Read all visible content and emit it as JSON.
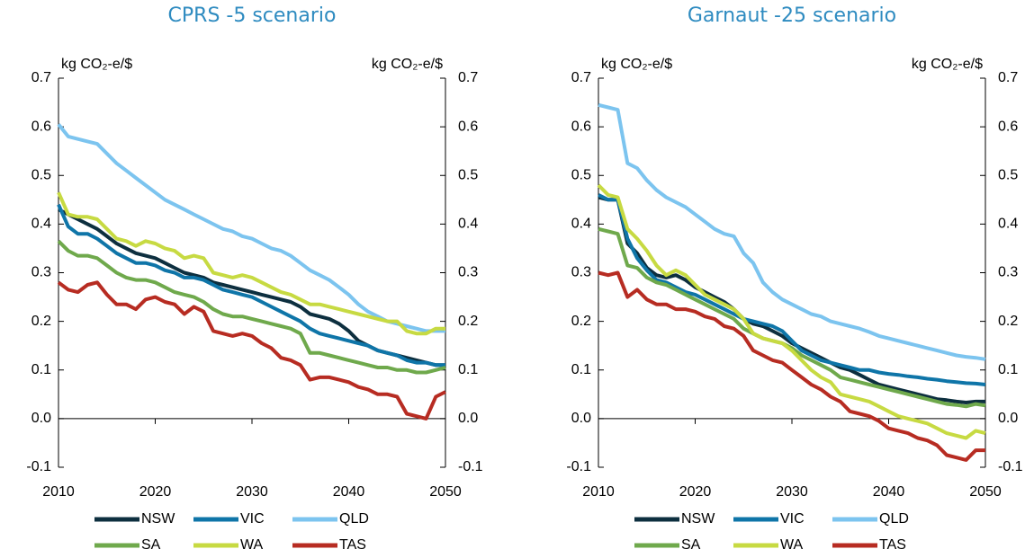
{
  "chart_data": [
    {
      "type": "line",
      "title": "CPRS -5 scenario",
      "y_label": "kg CO₂-e/$",
      "y2_label": "kg CO₂-e/$",
      "x": [
        2010,
        2011,
        2012,
        2013,
        2014,
        2015,
        2016,
        2017,
        2018,
        2019,
        2020,
        2021,
        2022,
        2023,
        2024,
        2025,
        2026,
        2027,
        2028,
        2029,
        2030,
        2031,
        2032,
        2033,
        2034,
        2035,
        2036,
        2037,
        2038,
        2039,
        2040,
        2041,
        2042,
        2043,
        2044,
        2045,
        2046,
        2047,
        2048,
        2049,
        2050
      ],
      "xlim": [
        2010,
        2050
      ],
      "xticks": [
        2010,
        2020,
        2030,
        2040,
        2050
      ],
      "ylim": [
        -0.1,
        0.7
      ],
      "yticks": [
        0.7,
        0.6,
        0.5,
        0.4,
        0.3,
        0.2,
        0.1,
        {
          "value": 0,
          "label": "0.0"
        },
        -0.1
      ],
      "y2lim": [
        -0.1,
        0.7
      ],
      "y2ticks": [
        0.7,
        0.6,
        0.5,
        0.4,
        0.3,
        0.2,
        0.1,
        {
          "value": 0,
          "label": "0.0"
        },
        -0.1
      ],
      "series": [
        {
          "name": "NSW",
          "color": "#0d2f3f",
          "values": [
            0.43,
            0.42,
            0.41,
            0.4,
            0.39,
            0.375,
            0.36,
            0.35,
            0.34,
            0.335,
            0.33,
            0.32,
            0.31,
            0.3,
            0.295,
            0.29,
            0.28,
            0.275,
            0.27,
            0.265,
            0.26,
            0.255,
            0.25,
            0.245,
            0.24,
            0.23,
            0.215,
            0.21,
            0.205,
            0.195,
            0.18,
            0.16,
            0.15,
            0.14,
            0.135,
            0.13,
            0.125,
            0.12,
            0.115,
            0.11,
            0.11
          ]
        },
        {
          "name": "VIC",
          "color": "#0f75a8",
          "values": [
            0.44,
            0.395,
            0.38,
            0.38,
            0.37,
            0.355,
            0.34,
            0.33,
            0.32,
            0.32,
            0.315,
            0.305,
            0.3,
            0.29,
            0.29,
            0.285,
            0.275,
            0.265,
            0.26,
            0.255,
            0.25,
            0.24,
            0.23,
            0.22,
            0.21,
            0.2,
            0.185,
            0.175,
            0.17,
            0.165,
            0.16,
            0.155,
            0.15,
            0.14,
            0.135,
            0.13,
            0.12,
            0.115,
            0.115,
            0.11,
            0.11
          ]
        },
        {
          "name": "QLD",
          "color": "#7cc4ef",
          "values": [
            0.605,
            0.58,
            0.575,
            0.57,
            0.565,
            0.545,
            0.525,
            0.51,
            0.495,
            0.48,
            0.465,
            0.45,
            0.44,
            0.43,
            0.42,
            0.41,
            0.4,
            0.39,
            0.385,
            0.375,
            0.37,
            0.36,
            0.35,
            0.345,
            0.335,
            0.32,
            0.305,
            0.295,
            0.285,
            0.27,
            0.255,
            0.235,
            0.22,
            0.21,
            0.2,
            0.195,
            0.19,
            0.185,
            0.18,
            0.18,
            0.18
          ]
        },
        {
          "name": "SA",
          "color": "#6fa94c",
          "values": [
            0.365,
            0.345,
            0.335,
            0.335,
            0.33,
            0.315,
            0.3,
            0.29,
            0.285,
            0.285,
            0.28,
            0.27,
            0.26,
            0.255,
            0.25,
            0.24,
            0.225,
            0.215,
            0.21,
            0.21,
            0.205,
            0.2,
            0.195,
            0.19,
            0.185,
            0.175,
            0.135,
            0.135,
            0.13,
            0.125,
            0.12,
            0.115,
            0.11,
            0.105,
            0.105,
            0.1,
            0.1,
            0.095,
            0.095,
            0.1,
            0.105
          ]
        },
        {
          "name": "WA",
          "color": "#c7da42",
          "values": [
            0.465,
            0.42,
            0.415,
            0.415,
            0.41,
            0.39,
            0.37,
            0.365,
            0.355,
            0.365,
            0.36,
            0.35,
            0.345,
            0.33,
            0.335,
            0.33,
            0.3,
            0.295,
            0.29,
            0.295,
            0.29,
            0.28,
            0.27,
            0.26,
            0.255,
            0.245,
            0.235,
            0.235,
            0.23,
            0.225,
            0.22,
            0.215,
            0.21,
            0.205,
            0.2,
            0.2,
            0.18,
            0.175,
            0.175,
            0.185,
            0.185
          ]
        },
        {
          "name": "TAS",
          "color": "#b72c22",
          "values": [
            0.28,
            0.265,
            0.26,
            0.275,
            0.28,
            0.255,
            0.235,
            0.235,
            0.225,
            0.245,
            0.25,
            0.24,
            0.235,
            0.215,
            0.23,
            0.22,
            0.18,
            0.175,
            0.17,
            0.175,
            0.17,
            0.155,
            0.145,
            0.125,
            0.12,
            0.11,
            0.08,
            0.085,
            0.085,
            0.08,
            0.075,
            0.065,
            0.06,
            0.05,
            0.05,
            0.045,
            0.01,
            0.005,
            0.0,
            0.045,
            0.055
          ]
        }
      ]
    },
    {
      "type": "line",
      "title": "Garnaut -25 scenario",
      "y_label": "kg CO₂-e/$",
      "y2_label": "kg CO₂-e/$",
      "x": [
        2010,
        2011,
        2012,
        2013,
        2014,
        2015,
        2016,
        2017,
        2018,
        2019,
        2020,
        2021,
        2022,
        2023,
        2024,
        2025,
        2026,
        2027,
        2028,
        2029,
        2030,
        2031,
        2032,
        2033,
        2034,
        2035,
        2036,
        2037,
        2038,
        2039,
        2040,
        2041,
        2042,
        2043,
        2044,
        2045,
        2046,
        2047,
        2048,
        2049,
        2050
      ],
      "xlim": [
        2010,
        2050
      ],
      "xticks": [
        2010,
        2020,
        2030,
        2040,
        2050
      ],
      "ylim": [
        -0.1,
        0.7
      ],
      "yticks": [
        0.7,
        0.6,
        0.5,
        0.4,
        0.3,
        0.2,
        0.1,
        {
          "value": 0,
          "label": "0.0"
        },
        -0.1
      ],
      "y2lim": [
        -0.1,
        0.7
      ],
      "y2ticks": [
        0.7,
        0.6,
        0.5,
        0.4,
        0.3,
        0.2,
        0.1,
        {
          "value": 0,
          "label": "0.0"
        },
        -0.1
      ],
      "series": [
        {
          "name": "NSW",
          "color": "#0d2f3f",
          "values": [
            0.455,
            0.45,
            0.45,
            0.36,
            0.34,
            0.31,
            0.295,
            0.29,
            0.295,
            0.285,
            0.27,
            0.26,
            0.25,
            0.24,
            0.225,
            0.205,
            0.195,
            0.19,
            0.18,
            0.17,
            0.155,
            0.145,
            0.135,
            0.125,
            0.115,
            0.105,
            0.1,
            0.09,
            0.08,
            0.07,
            0.065,
            0.06,
            0.055,
            0.05,
            0.045,
            0.04,
            0.038,
            0.035,
            0.033,
            0.035,
            0.035
          ]
        },
        {
          "name": "VIC",
          "color": "#0f75a8",
          "values": [
            0.46,
            0.45,
            0.45,
            0.37,
            0.33,
            0.305,
            0.285,
            0.28,
            0.27,
            0.26,
            0.255,
            0.245,
            0.235,
            0.225,
            0.215,
            0.205,
            0.2,
            0.195,
            0.19,
            0.18,
            0.16,
            0.14,
            0.13,
            0.12,
            0.115,
            0.11,
            0.105,
            0.1,
            0.1,
            0.095,
            0.092,
            0.09,
            0.087,
            0.085,
            0.082,
            0.08,
            0.077,
            0.075,
            0.073,
            0.072,
            0.07
          ]
        },
        {
          "name": "QLD",
          "color": "#7cc4ef",
          "values": [
            0.645,
            0.64,
            0.635,
            0.525,
            0.515,
            0.49,
            0.47,
            0.455,
            0.445,
            0.435,
            0.42,
            0.405,
            0.39,
            0.38,
            0.375,
            0.34,
            0.32,
            0.28,
            0.26,
            0.245,
            0.235,
            0.225,
            0.215,
            0.21,
            0.2,
            0.195,
            0.19,
            0.185,
            0.178,
            0.17,
            0.165,
            0.16,
            0.155,
            0.15,
            0.145,
            0.14,
            0.135,
            0.13,
            0.127,
            0.125,
            0.122
          ]
        },
        {
          "name": "SA",
          "color": "#6fa94c",
          "values": [
            0.39,
            0.385,
            0.38,
            0.315,
            0.31,
            0.29,
            0.28,
            0.275,
            0.265,
            0.255,
            0.245,
            0.235,
            0.225,
            0.215,
            0.205,
            0.185,
            0.175,
            0.165,
            0.16,
            0.155,
            0.145,
            0.13,
            0.12,
            0.11,
            0.1,
            0.085,
            0.08,
            0.075,
            0.07,
            0.065,
            0.06,
            0.055,
            0.05,
            0.045,
            0.04,
            0.035,
            0.03,
            0.028,
            0.025,
            0.03,
            0.027
          ]
        },
        {
          "name": "WA",
          "color": "#c7da42",
          "values": [
            0.48,
            0.46,
            0.455,
            0.39,
            0.37,
            0.345,
            0.315,
            0.295,
            0.305,
            0.295,
            0.275,
            0.255,
            0.245,
            0.235,
            0.225,
            0.205,
            0.175,
            0.165,
            0.16,
            0.155,
            0.14,
            0.12,
            0.1,
            0.085,
            0.075,
            0.05,
            0.045,
            0.04,
            0.035,
            0.025,
            0.015,
            0.005,
            0.0,
            -0.005,
            -0.01,
            -0.02,
            -0.03,
            -0.035,
            -0.04,
            -0.025,
            -0.03
          ]
        },
        {
          "name": "TAS",
          "color": "#b72c22",
          "values": [
            0.3,
            0.295,
            0.3,
            0.25,
            0.265,
            0.245,
            0.235,
            0.235,
            0.225,
            0.225,
            0.22,
            0.21,
            0.205,
            0.19,
            0.185,
            0.17,
            0.14,
            0.13,
            0.12,
            0.115,
            0.1,
            0.085,
            0.07,
            0.06,
            0.045,
            0.035,
            0.015,
            0.01,
            0.005,
            -0.005,
            -0.02,
            -0.025,
            -0.03,
            -0.04,
            -0.045,
            -0.055,
            -0.075,
            -0.08,
            -0.085,
            -0.065,
            -0.065
          ]
        }
      ]
    }
  ]
}
